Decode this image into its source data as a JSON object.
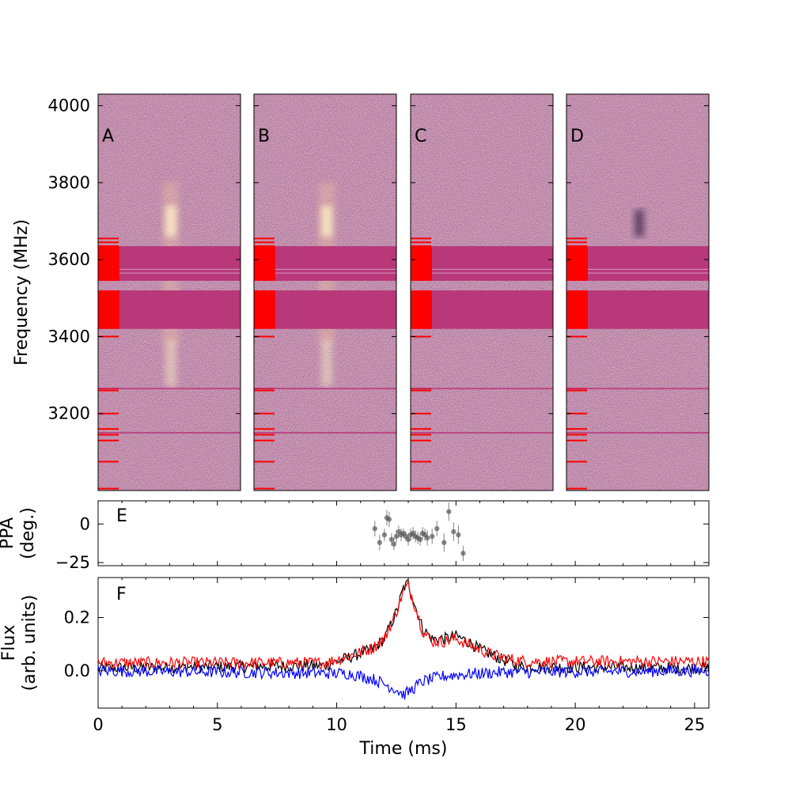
{
  "chart_data": [
    {
      "type": "heatmap",
      "panels": [
        {
          "label": "A",
          "burst": "bright"
        },
        {
          "label": "B",
          "burst": "bright"
        },
        {
          "label": "C",
          "burst": "none"
        },
        {
          "label": "D",
          "burst": "faint-negative"
        }
      ],
      "ylabel": "Frequency (MHz)",
      "ylim": [
        3000,
        4030
      ],
      "yticks": [
        3200,
        3400,
        3600,
        3800,
        4000
      ],
      "masked_bands_mhz": [
        [
          3545,
          3635
        ],
        [
          3420,
          3520
        ]
      ],
      "colors": {
        "noise_dark": "#2a1d4e",
        "noise_mid": "#8e3a6b",
        "noise_light": "#f4c7a0",
        "mask": "#b8387a",
        "flag": "#ff0000"
      }
    },
    {
      "type": "scatter",
      "panel_label": "E",
      "ylabel": "PPA\n(deg.)",
      "ylabel_lines": [
        "PPA",
        "(deg.)"
      ],
      "ylim": [
        -27,
        15
      ],
      "yticks": [
        0,
        -25
      ],
      "ytick_labels": [
        "0",
        "−25"
      ],
      "x": [
        11.6,
        11.8,
        12.0,
        12.1,
        12.2,
        12.3,
        12.4,
        12.5,
        12.6,
        12.7,
        12.8,
        12.9,
        13.0,
        13.1,
        13.2,
        13.3,
        13.4,
        13.5,
        13.6,
        13.7,
        13.8,
        14.0,
        14.2,
        14.5,
        14.7,
        14.9,
        15.1,
        15.3
      ],
      "y": [
        -3,
        -12,
        -7,
        4,
        3,
        -10,
        -13,
        -8,
        -5,
        -7,
        -6,
        -8,
        -10,
        -7,
        -6,
        -8,
        -9,
        -10,
        -6,
        -7,
        -9,
        -8,
        -3,
        -12,
        8,
        -5,
        -7,
        -19
      ],
      "err": [
        5,
        5,
        4,
        5,
        5,
        4,
        4,
        4,
        4,
        4,
        3,
        3,
        4,
        4,
        4,
        4,
        4,
        4,
        4,
        4,
        5,
        5,
        5,
        6,
        6,
        6,
        6,
        5
      ],
      "color": "#4d4d4d"
    },
    {
      "type": "line",
      "panel_label": "F",
      "ylabel_lines": [
        "Flux",
        "(arb. units)"
      ],
      "xlabel": "Time (ms)",
      "xlim": [
        0,
        25.6
      ],
      "xticks": [
        0,
        5,
        10,
        15,
        20,
        25
      ],
      "ylim": [
        -0.14,
        0.35
      ],
      "yticks": [
        0.0,
        0.2
      ],
      "ytick_labels": [
        "0.0",
        "0.2"
      ],
      "series": [
        {
          "color": "#000000",
          "x": [
            0,
            9.5,
            10.5,
            11.5,
            12.0,
            12.5,
            12.8,
            13.0,
            13.3,
            13.6,
            14.0,
            14.5,
            15.0,
            15.5,
            16.0,
            16.5,
            17.0,
            17.5,
            18.0,
            25.6
          ],
          "y": [
            0.01,
            0.02,
            0.05,
            0.08,
            0.12,
            0.22,
            0.31,
            0.33,
            0.24,
            0.16,
            0.12,
            0.12,
            0.13,
            0.11,
            0.08,
            0.06,
            0.04,
            0.02,
            0.015,
            0.01
          ]
        },
        {
          "color": "#ff0000",
          "x": [
            0,
            9.5,
            10.5,
            11.5,
            12.0,
            12.5,
            12.8,
            13.0,
            13.3,
            13.6,
            14.0,
            14.5,
            15.0,
            15.5,
            16.0,
            16.5,
            17.0,
            17.5,
            18.0,
            25.6
          ],
          "y": [
            0.03,
            0.03,
            0.055,
            0.085,
            0.12,
            0.22,
            0.3,
            0.32,
            0.24,
            0.15,
            0.11,
            0.11,
            0.12,
            0.1,
            0.08,
            0.06,
            0.05,
            0.04,
            0.035,
            0.035
          ]
        },
        {
          "color": "#0000ff",
          "x": [
            0,
            10.5,
            11.5,
            12.0,
            12.5,
            12.8,
            13.0,
            13.3,
            13.6,
            14.0,
            14.5,
            15.0,
            16.0,
            17.0,
            25.6
          ],
          "y": [
            0.0,
            -0.01,
            -0.03,
            -0.05,
            -0.07,
            -0.09,
            -0.08,
            -0.06,
            -0.04,
            -0.03,
            -0.02,
            -0.015,
            -0.01,
            -0.005,
            0.0
          ]
        }
      ]
    }
  ]
}
